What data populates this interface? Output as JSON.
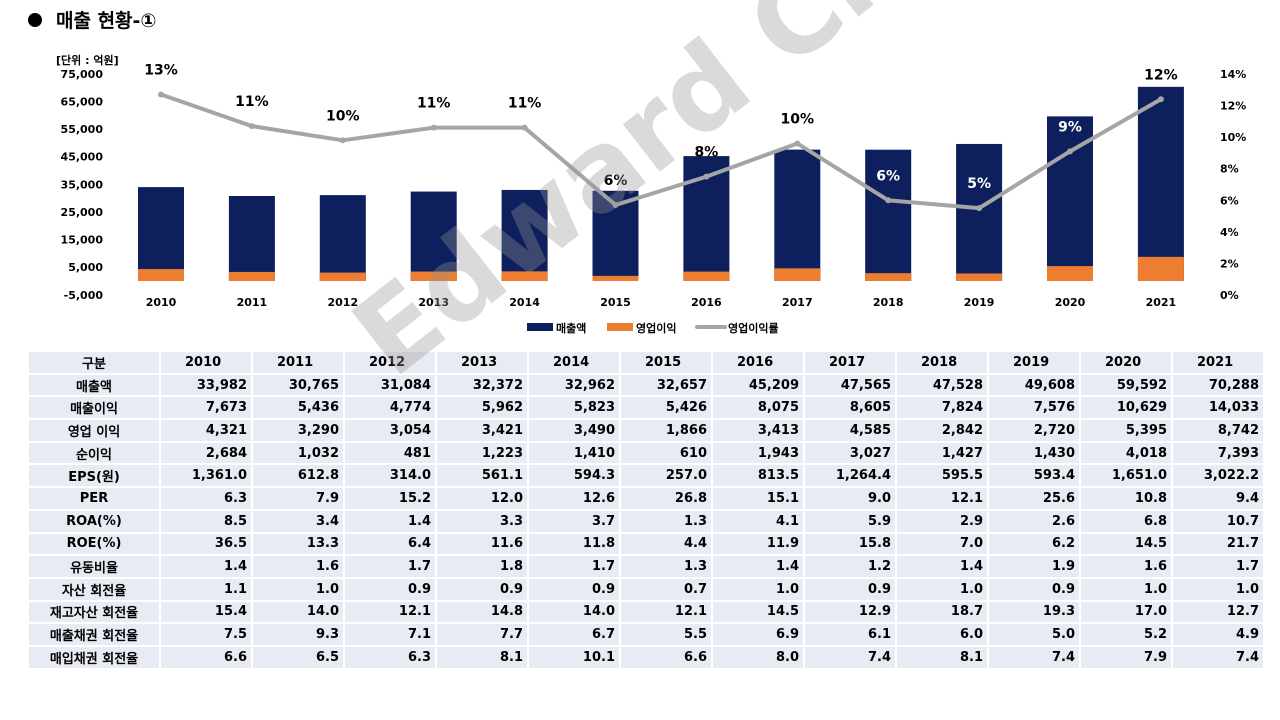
{
  "title": "매출 현황-①",
  "watermark": "Edward Choi",
  "chart_data": {
    "type": "bar+line",
    "unit_label": "[단위 : 억원]",
    "categories": [
      "2010",
      "2011",
      "2012",
      "2013",
      "2014",
      "2015",
      "2016",
      "2017",
      "2018",
      "2019",
      "2020",
      "2021"
    ],
    "left_axis": {
      "range": [
        -5000,
        75000
      ],
      "ticks": [
        "-5,000",
        "5,000",
        "15,000",
        "25,000",
        "35,000",
        "45,000",
        "55,000",
        "65,000",
        "75,000"
      ]
    },
    "right_axis": {
      "range": [
        0,
        14
      ],
      "ticks": [
        "0%",
        "2%",
        "4%",
        "6%",
        "8%",
        "10%",
        "12%",
        "14%"
      ]
    },
    "grid": false,
    "legend_position": "bottom",
    "series": [
      {
        "name": "매출액",
        "type": "bar",
        "color": "#0d1f5c",
        "values": [
          33982,
          30765,
          31084,
          32372,
          32962,
          32657,
          45209,
          47565,
          47528,
          49608,
          59592,
          70288
        ]
      },
      {
        "name": "영업이익",
        "type": "bar",
        "color": "#ed7d31",
        "values": [
          4321,
          3290,
          3054,
          3421,
          3490,
          1866,
          3413,
          4585,
          2842,
          2720,
          5395,
          8742
        ]
      },
      {
        "name": "영업이익률",
        "type": "line",
        "axis": "right",
        "color": "#a5a5a5",
        "values": [
          12.7,
          10.7,
          9.8,
          10.6,
          10.6,
          5.7,
          7.5,
          9.6,
          6.0,
          5.5,
          9.1,
          12.4
        ],
        "labels": [
          "13%",
          "11%",
          "10%",
          "11%",
          "11%",
          "6%",
          "8%",
          "10%",
          "6%",
          "5%",
          "9%",
          "12%"
        ]
      }
    ]
  },
  "table": {
    "header": [
      "구분",
      "2010",
      "2011",
      "2012",
      "2013",
      "2014",
      "2015",
      "2016",
      "2017",
      "2018",
      "2019",
      "2020",
      "2021"
    ],
    "rows": [
      [
        "매출액",
        "33,982",
        "30,765",
        "31,084",
        "32,372",
        "32,962",
        "32,657",
        "45,209",
        "47,565",
        "47,528",
        "49,608",
        "59,592",
        "70,288"
      ],
      [
        "매출이익",
        "7,673",
        "5,436",
        "4,774",
        "5,962",
        "5,823",
        "5,426",
        "8,075",
        "8,605",
        "7,824",
        "7,576",
        "10,629",
        "14,033"
      ],
      [
        "영업 이익",
        "4,321",
        "3,290",
        "3,054",
        "3,421",
        "3,490",
        "1,866",
        "3,413",
        "4,585",
        "2,842",
        "2,720",
        "5,395",
        "8,742"
      ],
      [
        "순이익",
        "2,684",
        "1,032",
        "481",
        "1,223",
        "1,410",
        "610",
        "1,943",
        "3,027",
        "1,427",
        "1,430",
        "4,018",
        "7,393"
      ],
      [
        "EPS(원)",
        "1,361.0",
        "612.8",
        "314.0",
        "561.1",
        "594.3",
        "257.0",
        "813.5",
        "1,264.4",
        "595.5",
        "593.4",
        "1,651.0",
        "3,022.2"
      ],
      [
        "PER",
        "6.3",
        "7.9",
        "15.2",
        "12.0",
        "12.6",
        "26.8",
        "15.1",
        "9.0",
        "12.1",
        "25.6",
        "10.8",
        "9.4"
      ],
      [
        "ROA(%)",
        "8.5",
        "3.4",
        "1.4",
        "3.3",
        "3.7",
        "1.3",
        "4.1",
        "5.9",
        "2.9",
        "2.6",
        "6.8",
        "10.7"
      ],
      [
        "ROE(%)",
        "36.5",
        "13.3",
        "6.4",
        "11.6",
        "11.8",
        "4.4",
        "11.9",
        "15.8",
        "7.0",
        "6.2",
        "14.5",
        "21.7"
      ],
      [
        "유동비율",
        "1.4",
        "1.6",
        "1.7",
        "1.8",
        "1.7",
        "1.3",
        "1.4",
        "1.2",
        "1.4",
        "1.9",
        "1.6",
        "1.7"
      ],
      [
        "자산 회전율",
        "1.1",
        "1.0",
        "0.9",
        "0.9",
        "0.9",
        "0.7",
        "1.0",
        "0.9",
        "1.0",
        "0.9",
        "1.0",
        "1.0"
      ],
      [
        "재고자산 회전율",
        "15.4",
        "14.0",
        "12.1",
        "14.8",
        "14.0",
        "12.1",
        "14.5",
        "12.9",
        "18.7",
        "19.3",
        "17.0",
        "12.7"
      ],
      [
        "매출채권 회전율",
        "7.5",
        "9.3",
        "7.1",
        "7.7",
        "6.7",
        "5.5",
        "6.9",
        "6.1",
        "6.0",
        "5.0",
        "5.2",
        "4.9"
      ],
      [
        "매입채권 회전율",
        "6.6",
        "6.5",
        "6.3",
        "8.1",
        "10.1",
        "6.6",
        "8.0",
        "7.4",
        "8.1",
        "7.4",
        "7.9",
        "7.4"
      ]
    ]
  }
}
